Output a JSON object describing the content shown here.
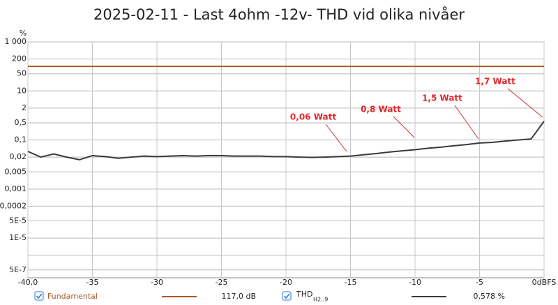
{
  "chart_data": {
    "type": "line",
    "title": "2025-02-11 - Last 4ohm -12v- THD vid olika nivåer",
    "y_label": "%",
    "log_y": true,
    "grid": true,
    "xlim": [
      -40,
      0
    ],
    "xticks": [
      {
        "value": -40,
        "label": "-40,0"
      },
      -35,
      -30,
      -25,
      -20,
      -15,
      -10,
      -5,
      {
        "value": 0,
        "label": "0dBFS"
      }
    ],
    "ylim": [
      2.4e-07,
      1000
    ],
    "yticks": [
      {
        "value": 1000,
        "label": "1 000"
      },
      200,
      50,
      10,
      2,
      {
        "value": 0.5,
        "label": "0,5"
      },
      {
        "value": 0.1,
        "label": "0,1"
      },
      {
        "value": 0.02,
        "label": "0,02"
      },
      {
        "value": 0.005,
        "label": "0,005"
      },
      {
        "value": 0.001,
        "label": "0,001"
      },
      {
        "value": 0.0002,
        "label": "0,0002"
      },
      {
        "value": 5e-05,
        "label": "5E-5"
      },
      {
        "value": 1e-05,
        "label": "1E-5"
      },
      {
        "value": 2e-06,
        "label": null
      },
      {
        "value": 5e-07,
        "label": "5E-7"
      }
    ],
    "series": [
      {
        "name": "Fundamental",
        "reading": "117,0 dB",
        "color": "#a65a2a",
        "x": [
          -40,
          0
        ],
        "values": [
          100,
          100
        ]
      },
      {
        "name": "THD",
        "name_sub": "H2..9",
        "reading": "0,578 %",
        "color": "#3a3a3a",
        "x": [
          -40,
          -39,
          -38,
          -37,
          -36,
          -35,
          -34,
          -33,
          -32,
          -31,
          -30,
          -29,
          -28,
          -27,
          -26,
          -25,
          -24,
          -23,
          -22,
          -21,
          -20,
          -19,
          -18,
          -17,
          -16,
          -15,
          -14,
          -13,
          -12,
          -11,
          -10,
          -9,
          -8,
          -7,
          -6,
          -5,
          -4,
          -3,
          -2,
          -1,
          0
        ],
        "values": [
          0.034,
          0.02,
          0.027,
          0.02,
          0.0156,
          0.023,
          0.021,
          0.018,
          0.02,
          0.022,
          0.021,
          0.022,
          0.023,
          0.022,
          0.023,
          0.023,
          0.022,
          0.022,
          0.022,
          0.021,
          0.021,
          0.02,
          0.0195,
          0.02,
          0.021,
          0.022,
          0.025,
          0.028,
          0.032,
          0.036,
          0.04,
          0.046,
          0.051,
          0.058,
          0.065,
          0.075,
          0.08,
          0.09,
          0.1,
          0.11,
          0.578
        ]
      }
    ],
    "annotations": [
      "0,06 Watt",
      "0,8 Watt",
      "1,5 Watt",
      "1,7 Watt"
    ]
  }
}
